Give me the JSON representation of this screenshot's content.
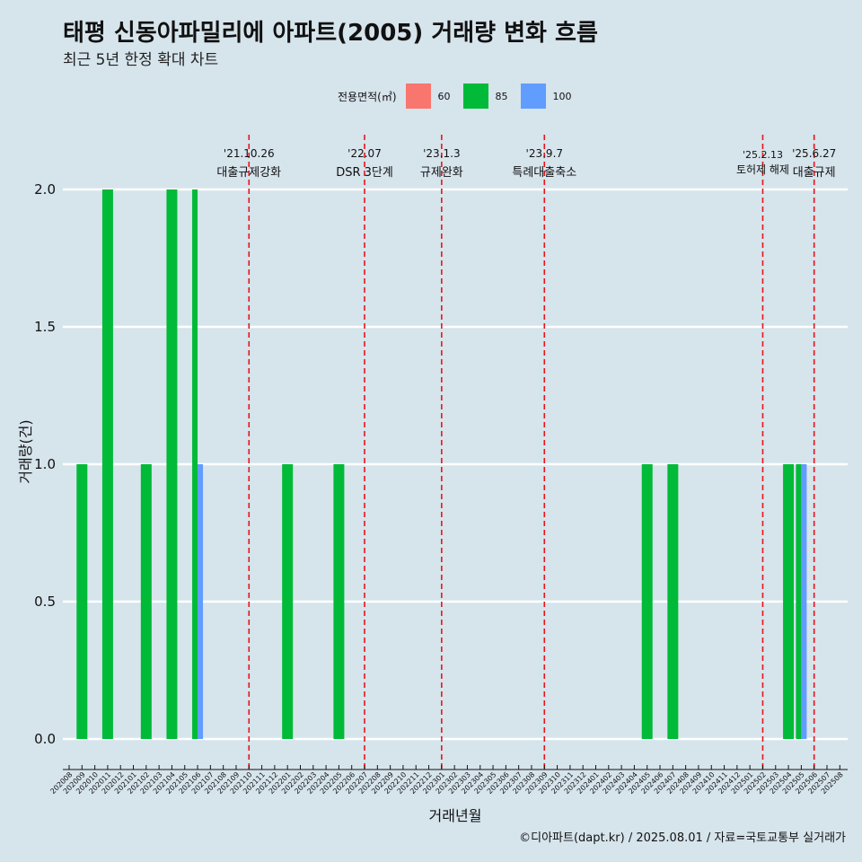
{
  "title": "태평 신동아파밀리에 아파트(2005) 거래량 변화 흐름",
  "subtitle": "최근 5년 한정 확대 차트",
  "caption": "©디아파트(dapt.kr) / 2025.08.01 / 자료=국토교통부 실거래가",
  "legend": {
    "title": "전용면적(㎡)",
    "items": [
      {
        "label": "60",
        "color": "#f8766d"
      },
      {
        "label": "85",
        "color": "#00ba38"
      },
      {
        "label": "100",
        "color": "#619cff"
      }
    ]
  },
  "chart_data": {
    "type": "bar",
    "title": "태평 신동아파밀리에 아파트(2005) 거래량 변화 흐름",
    "subtitle": "최근 5년 한정 확대 차트",
    "xlabel": "거래년월",
    "ylabel": "거래량(건)",
    "ylim": [
      0,
      2.0
    ],
    "yticks": [
      "0.0",
      "0.5",
      "1.0",
      "1.5",
      "2.0"
    ],
    "grid": "horizontal",
    "legend_position": "top",
    "categories": [
      "202008",
      "202009",
      "202010",
      "202011",
      "202012",
      "202101",
      "202102",
      "202103",
      "202104",
      "202105",
      "202106",
      "202107",
      "202108",
      "202109",
      "202110",
      "202111",
      "202112",
      "202201",
      "202202",
      "202203",
      "202204",
      "202205",
      "202206",
      "202207",
      "202208",
      "202209",
      "202210",
      "202211",
      "202212",
      "202301",
      "202302",
      "202303",
      "202304",
      "202305",
      "202306",
      "202307",
      "202308",
      "202309",
      "202310",
      "202311",
      "202312",
      "202401",
      "202402",
      "202403",
      "202404",
      "202405",
      "202406",
      "202407",
      "202408",
      "202409",
      "202410",
      "202411",
      "202412",
      "202501",
      "202502",
      "202503",
      "202504",
      "202505",
      "202506",
      "202507",
      "202508"
    ],
    "series": [
      {
        "name": "60",
        "color": "#f8766d",
        "points": []
      },
      {
        "name": "85",
        "color": "#00ba38",
        "points": [
          {
            "x": "202009",
            "y": 1
          },
          {
            "x": "202011",
            "y": 2
          },
          {
            "x": "202102",
            "y": 1
          },
          {
            "x": "202104",
            "y": 2
          },
          {
            "x": "202106",
            "y": 2
          },
          {
            "x": "202201",
            "y": 1
          },
          {
            "x": "202205",
            "y": 1
          },
          {
            "x": "202405",
            "y": 1
          },
          {
            "x": "202407",
            "y": 1
          },
          {
            "x": "202504",
            "y": 1
          },
          {
            "x": "202505",
            "y": 1
          }
        ]
      },
      {
        "name": "100",
        "color": "#619cff",
        "points": [
          {
            "x": "202106",
            "y": 1
          },
          {
            "x": "202505",
            "y": 1
          }
        ]
      }
    ],
    "annotations": [
      {
        "x": "202110",
        "date": "'21.10.26",
        "text": "대출규제강화",
        "small": false
      },
      {
        "x": "202207",
        "date": "'22.07",
        "text": "DSR 3단계",
        "small": false
      },
      {
        "x": "202301",
        "date": "'23.1.3",
        "text": "규제완화",
        "small": false
      },
      {
        "x": "202309",
        "date": "'23.9.7",
        "text": "특례대출축소",
        "small": false
      },
      {
        "x": "202502",
        "date": "'25.2.13",
        "text": "토허제 해제",
        "small": true
      },
      {
        "x": "202506",
        "date": "'25.6.27",
        "text": "대출규제",
        "small": false
      }
    ]
  }
}
